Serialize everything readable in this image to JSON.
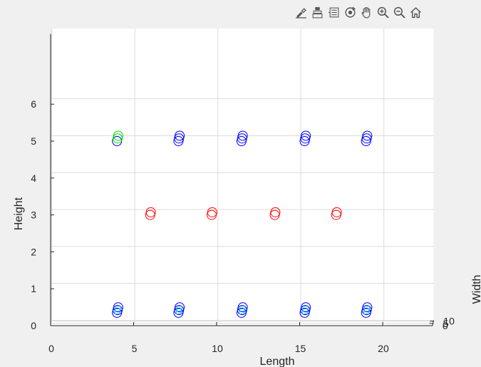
{
  "toolbar": {
    "items": [
      {
        "name": "brush-icon"
      },
      {
        "name": "data-tips-icon"
      },
      {
        "name": "legend-icon"
      },
      {
        "name": "rotate-3d-icon"
      },
      {
        "name": "pan-hand-icon"
      },
      {
        "name": "zoom-in-icon"
      },
      {
        "name": "zoom-out-icon"
      },
      {
        "name": "home-icon"
      }
    ]
  },
  "chart_data": {
    "type": "scatter3d",
    "xlabel": "Length",
    "ylabel": "Width",
    "zlabel": "Height",
    "xlim": [
      0,
      23
    ],
    "ylim": [
      0,
      12
    ],
    "zlim": [
      0,
      7
    ],
    "xticks": [
      0,
      5,
      10,
      15,
      20
    ],
    "yticks": [
      0,
      5,
      10
    ],
    "zticks": [
      0,
      1,
      2,
      3,
      4,
      5,
      6
    ],
    "grid": true,
    "series": [
      {
        "marker": "circle",
        "color": "#0000ff",
        "points": [
          [
            4,
            0,
            0.35
          ],
          [
            7.7,
            0,
            0.35
          ],
          [
            11.5,
            0,
            0.35
          ],
          [
            15.3,
            0,
            0.35
          ],
          [
            19,
            0,
            0.35
          ],
          [
            4,
            6,
            0.35
          ],
          [
            7.7,
            6,
            0.35
          ],
          [
            11.5,
            6,
            0.35
          ],
          [
            15.3,
            6,
            0.35
          ],
          [
            19,
            6,
            0.35
          ],
          [
            4,
            12,
            0.35
          ],
          [
            7.7,
            12,
            0.35
          ],
          [
            11.5,
            12,
            0.35
          ],
          [
            15.3,
            12,
            0.35
          ],
          [
            19,
            12,
            0.35
          ],
          [
            4,
            0,
            5.0
          ],
          [
            7.7,
            0,
            5.0
          ],
          [
            11.5,
            0,
            5.0
          ],
          [
            15.3,
            0,
            5.0
          ],
          [
            19,
            0,
            5.0
          ],
          [
            7.7,
            6,
            5.0
          ],
          [
            11.5,
            6,
            5.0
          ],
          [
            15.3,
            6,
            5.0
          ],
          [
            19,
            6,
            5.0
          ],
          [
            7.7,
            12,
            5.0
          ],
          [
            11.5,
            12,
            5.0
          ],
          [
            15.3,
            12,
            5.0
          ],
          [
            19,
            12,
            5.0
          ]
        ]
      },
      {
        "marker": "square",
        "color": "#27a9e1",
        "points": [
          [
            4,
            3,
            0.35
          ],
          [
            7.7,
            3,
            0.35
          ],
          [
            11.5,
            3,
            0.35
          ],
          [
            15.3,
            3,
            0.35
          ],
          [
            19,
            3,
            0.35
          ],
          [
            4,
            9,
            0.35
          ],
          [
            7.7,
            9,
            0.35
          ],
          [
            11.5,
            9,
            0.35
          ],
          [
            15.3,
            9,
            0.35
          ],
          [
            19,
            9,
            0.35
          ]
        ]
      },
      {
        "marker": "circle",
        "color": "#ff0000",
        "points": [
          [
            6,
            0,
            3.0
          ],
          [
            9.7,
            0,
            3.0
          ],
          [
            13.5,
            0,
            3.0
          ],
          [
            17.2,
            0,
            3.0
          ],
          [
            6,
            6,
            3.0
          ],
          [
            9.7,
            6,
            3.0
          ],
          [
            13.5,
            6,
            3.0
          ],
          [
            17.2,
            6,
            3.0
          ]
        ]
      },
      {
        "marker": "circle",
        "color": "#00dd00",
        "points": [
          [
            4,
            6,
            5.0
          ],
          [
            4,
            12,
            5.0
          ]
        ]
      }
    ]
  }
}
